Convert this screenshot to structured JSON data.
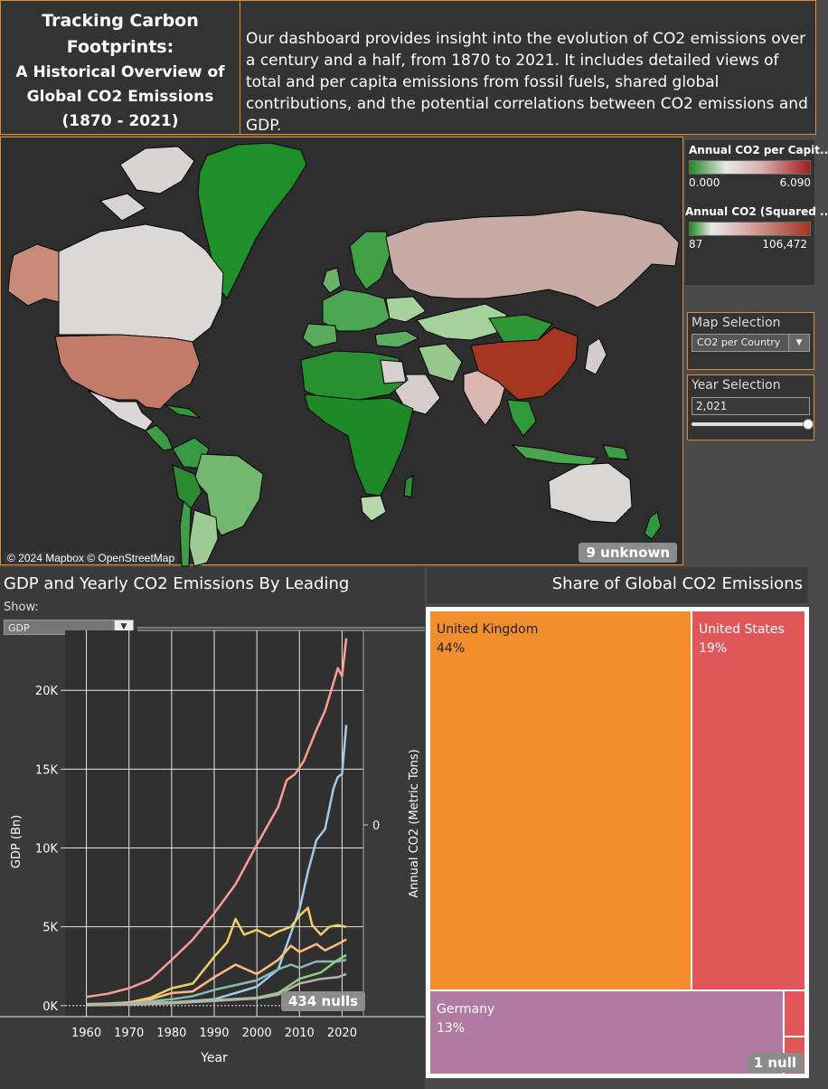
{
  "header": {
    "title_line1": "Tracking Carbon",
    "title_line2": "Footprints:",
    "title_line3": "A Historical Overview of",
    "title_line4": "Global CO2 Emissions",
    "title_line5": "(1870 - 2021)",
    "description": "Our dashboard provides insight into the evolution of CO2 emissions over a century and a half, from 1870 to 2021. It includes detailed views of total and per capita emissions from fossil fuels, shared global contributions, and the potential correlations between CO2 emissions and GDP."
  },
  "map": {
    "credit": "© 2024 Mapbox © OpenStreetMap",
    "unknown_badge": "9 unknown"
  },
  "legends": {
    "per_capita": {
      "title": "Annual CO2 per Capit..",
      "min": "0.000",
      "max": "6.090"
    },
    "squared": {
      "title": "Annual CO2 (Squared ..",
      "min": "87",
      "max": "106,472"
    }
  },
  "controls": {
    "map_selection_label": "Map Selection",
    "map_selection_value": "CO2 per Country",
    "year_selection_label": "Year Selection",
    "year_value": "2,021",
    "year_slider_fraction": 1.0
  },
  "line_chart": {
    "title": "GDP and Yearly CO2 Emissions By Leading",
    "show_label": "Show:",
    "show_value": "GDP",
    "nulls_badge": "434 nulls"
  },
  "treemap": {
    "title": "Share of Global CO2 Emissions",
    "null_badge": "1 null",
    "cells": [
      {
        "name": "United Kingdom",
        "pct": "44%",
        "color": "#f28e2b"
      },
      {
        "name": "United States",
        "pct": "19%",
        "color": "#e15759"
      },
      {
        "name": "Germany",
        "pct": "13%",
        "color": "#b07aa1"
      }
    ]
  },
  "colors": {
    "accent_border": "#e08a33",
    "low": "#1f8a1f",
    "mid": "#d9d9d9",
    "high": "#a01e1e"
  },
  "chart_data": {
    "type": "line",
    "xlabel": "Year",
    "ylabel": "GDP (Bn)",
    "y2label": "Annual CO2 (Metric Tons)",
    "y2_ticks": [
      "0"
    ],
    "x_ticks": [
      1960,
      1970,
      1980,
      1990,
      2000,
      2010,
      2020
    ],
    "y_ticks": [
      "0K",
      "5K",
      "10K",
      "15K",
      "20K"
    ],
    "xlim": [
      1955,
      2025
    ],
    "ylim": [
      -700,
      23800
    ],
    "series": [
      {
        "color": "#ff9d9a",
        "x": [
          1960,
          1965,
          1970,
          1975,
          1980,
          1985,
          1990,
          1995,
          2000,
          2005,
          2007,
          2009,
          2011,
          2014,
          2016,
          2019,
          2020,
          2021
        ],
        "y": [
          550,
          750,
          1100,
          1650,
          2900,
          4200,
          5850,
          7700,
          10200,
          12600,
          14300,
          14700,
          15500,
          17500,
          18700,
          21400,
          20900,
          23300
        ]
      },
      {
        "color": "#a0cbe8",
        "x": [
          1960,
          1970,
          1980,
          1990,
          2000,
          2005,
          2008,
          2010,
          2012,
          2014,
          2016,
          2018,
          2019,
          2020,
          2021
        ],
        "y": [
          100,
          150,
          200,
          400,
          1200,
          2300,
          4600,
          6100,
          8500,
          10500,
          11200,
          13800,
          14500,
          14700,
          17800
        ]
      },
      {
        "color": "#f1ce63",
        "x": [
          1960,
          1965,
          1970,
          1975,
          1980,
          1985,
          1990,
          1993,
          1995,
          1997,
          2000,
          2003,
          2005,
          2008,
          2010,
          2012,
          2013,
          2015,
          2017,
          2019,
          2021
        ],
        "y": [
          50,
          90,
          200,
          500,
          1100,
          1400,
          3100,
          4000,
          5500,
          4500,
          4800,
          4400,
          4700,
          5000,
          5700,
          6200,
          5100,
          4500,
          5000,
          5100,
          5000
        ]
      },
      {
        "color": "#ffbe7d",
        "x": [
          1960,
          1970,
          1975,
          1980,
          1985,
          1990,
          1995,
          2000,
          2005,
          2008,
          2010,
          2014,
          2016,
          2019,
          2021
        ],
        "y": [
          60,
          200,
          400,
          800,
          900,
          1800,
          2600,
          2000,
          2900,
          3800,
          3400,
          3900,
          3500,
          3900,
          4200
        ]
      },
      {
        "color": "#86bcb6",
        "x": [
          1960,
          1970,
          1980,
          1985,
          1990,
          1995,
          2000,
          2005,
          2008,
          2010,
          2014,
          2016,
          2019,
          2021
        ],
        "y": [
          40,
          130,
          400,
          600,
          1000,
          1300,
          1600,
          2300,
          2600,
          2400,
          2800,
          2800,
          2800,
          2900
        ]
      },
      {
        "color": "#8cd17d",
        "x": [
          1960,
          1970,
          1980,
          1990,
          2000,
          2005,
          2010,
          2015,
          2019,
          2021
        ],
        "y": [
          20,
          60,
          200,
          350,
          500,
          800,
          1700,
          2100,
          2900,
          3200
        ]
      },
      {
        "color": "#bab0ac",
        "x": [
          1960,
          1970,
          1980,
          1990,
          2000,
          2005,
          2010,
          2015,
          2019,
          2021
        ],
        "y": [
          30,
          70,
          150,
          300,
          450,
          700,
          1400,
          1700,
          1800,
          2000
        ]
      }
    ]
  }
}
